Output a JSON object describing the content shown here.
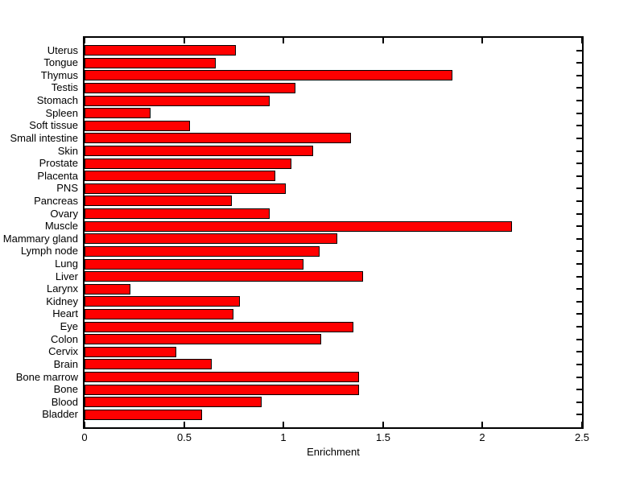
{
  "figure": {
    "background": "#FFFFFF"
  },
  "chart_data": {
    "type": "bar",
    "orientation": "horizontal",
    "title": "",
    "xlabel": "Enrichment",
    "ylabel": "",
    "xlim": [
      0,
      2.5
    ],
    "xticks": [
      0,
      0.5,
      1,
      1.5,
      2,
      2.5
    ],
    "xtick_labels": [
      "0",
      "0.5",
      "1",
      "1.5",
      "2",
      "2.5"
    ],
    "grid": false,
    "legend": null,
    "bar_color": "#FF0000",
    "bar_edge_color": "#000000",
    "axis_color": "#000000",
    "categories": [
      "Uterus",
      "Tongue",
      "Thymus",
      "Testis",
      "Stomach",
      "Spleen",
      "Soft tissue",
      "Small intestine",
      "Skin",
      "Prostate",
      "Placenta",
      "PNS",
      "Pancreas",
      "Ovary",
      "Muscle",
      "Mammary gland",
      "Lymph node",
      "Lung",
      "Liver",
      "Larynx",
      "Kidney",
      "Heart",
      "Eye",
      "Colon",
      "Cervix",
      "Brain",
      "Bone marrow",
      "Bone",
      "Blood",
      "Bladder"
    ],
    "values": [
      0.76,
      0.66,
      1.85,
      1.06,
      0.93,
      0.33,
      0.53,
      1.34,
      1.15,
      1.04,
      0.96,
      1.01,
      0.74,
      0.93,
      2.15,
      1.27,
      1.18,
      1.1,
      1.4,
      0.23,
      0.78,
      0.75,
      1.35,
      1.19,
      0.46,
      0.64,
      1.38,
      1.38,
      0.89,
      0.59
    ]
  }
}
